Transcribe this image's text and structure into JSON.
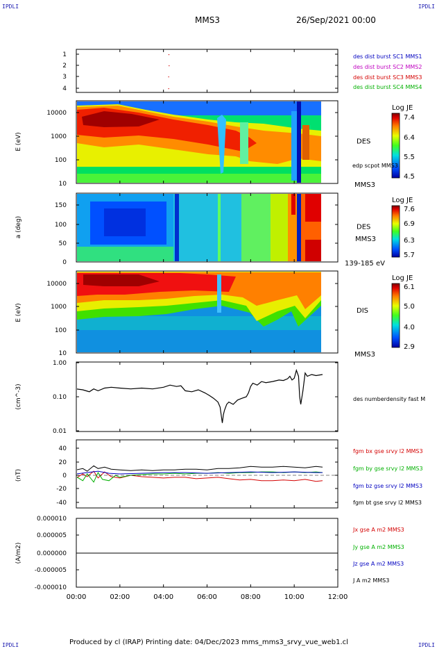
{
  "corner_label": "IPDLI",
  "header": {
    "spacecraft": "MMS3",
    "date": "26/Sep/2021 00:00"
  },
  "footer": {
    "text": "Produced by cl (IRAP)   Printing date: 04/Dec/2023   mms_mms3_srvy_vue_web1.cl"
  },
  "colors": {
    "red": "#d40000",
    "green": "#00b000",
    "blue": "#0000c0",
    "magenta": "#c000c0",
    "black": "#000000"
  },
  "chart_data": [
    {
      "type": "scatter",
      "id": "burst",
      "yticks": [
        "1",
        "2",
        "3",
        "4"
      ],
      "ylim": [
        0.7,
        4.3
      ],
      "legend": [
        {
          "text": "des dist burst SC1 MMS1",
          "color": "#0000c0"
        },
        {
          "text": "des dist burst SC2 MMS2",
          "color": "#c000c0"
        },
        {
          "text": "des dist burst SC3 MMS3",
          "color": "#d40000"
        },
        {
          "text": "des dist burst SC4 MMS4",
          "color": "#00b000"
        }
      ],
      "points": [
        {
          "x": 4.22,
          "y": 4
        },
        {
          "x": 4.22,
          "y": 3
        },
        {
          "x": 4.24,
          "y": 2
        },
        {
          "x": 4.23,
          "y": 1
        }
      ]
    },
    {
      "type": "heatmap",
      "id": "des_energy",
      "ylabel": "E (eV)",
      "yscale": "log",
      "ylim": [
        10,
        30000
      ],
      "yticks": [
        "10000",
        "1000",
        "100",
        "10"
      ],
      "labels": {
        "species": "DES",
        "sub": "edp scpot MMS3",
        "bottom": "MMS3"
      },
      "colorbar": {
        "title": "Log JE",
        "ticks": [
          "7.4",
          "6.4",
          "5.5",
          "4.5"
        ]
      }
    },
    {
      "type": "heatmap",
      "id": "des_pitch",
      "ylabel": "a (deg)",
      "ylim": [
        0,
        180
      ],
      "yticks": [
        "150",
        "100",
        "50",
        "0"
      ],
      "labels": {
        "species": "DES",
        "sub": "MMS3",
        "bottom": "139-185 eV"
      },
      "colorbar": {
        "title": "Log JE",
        "ticks": [
          "7.6",
          "6.9",
          "6.3",
          "5.7"
        ]
      }
    },
    {
      "type": "heatmap",
      "id": "dis_energy",
      "ylabel": "E (eV)",
      "yscale": "log",
      "ylim": [
        10,
        30000
      ],
      "yticks": [
        "10000",
        "1000",
        "100",
        "10"
      ],
      "labels": {
        "species": "DIS",
        "bottom": "MMS3"
      },
      "colorbar": {
        "title": "Log JE",
        "ticks": [
          "6.1",
          "5.0",
          "4.0",
          "2.9"
        ]
      }
    },
    {
      "type": "line",
      "id": "density",
      "ylabel": "(cm^-3)",
      "yscale": "log",
      "ylim": [
        0.01,
        1.0
      ],
      "yticks": [
        "1.00",
        "0.10",
        "0.01"
      ],
      "series": [
        {
          "name": "des numberdensity fast M",
          "color": "#000000",
          "x": [
            0,
            0.3,
            0.6,
            0.8,
            1.0,
            1.3,
            1.6,
            2.0,
            2.5,
            3.0,
            3.5,
            4.0,
            4.3,
            4.6,
            4.8,
            5.0,
            5.3,
            5.6,
            5.9,
            6.1,
            6.3,
            6.5,
            6.6,
            6.7,
            6.75,
            6.8,
            6.9,
            7.0,
            7.2,
            7.4,
            7.6,
            7.8,
            7.9,
            8.0,
            8.1,
            8.3,
            8.5,
            8.7,
            9.0,
            9.3,
            9.5,
            9.7,
            9.8,
            9.9,
            10.0,
            10.1,
            10.2,
            10.25,
            10.3,
            10.4,
            10.5,
            10.6,
            10.8,
            11.0,
            11.3
          ],
          "y": [
            0.17,
            0.16,
            0.14,
            0.17,
            0.15,
            0.18,
            0.19,
            0.18,
            0.17,
            0.18,
            0.17,
            0.19,
            0.22,
            0.2,
            0.21,
            0.15,
            0.14,
            0.16,
            0.13,
            0.11,
            0.09,
            0.07,
            0.05,
            0.017,
            0.03,
            0.04,
            0.06,
            0.07,
            0.06,
            0.08,
            0.09,
            0.1,
            0.13,
            0.2,
            0.25,
            0.22,
            0.28,
            0.26,
            0.28,
            0.31,
            0.3,
            0.34,
            0.4,
            0.31,
            0.35,
            0.6,
            0.4,
            0.1,
            0.06,
            0.15,
            0.5,
            0.4,
            0.45,
            0.42,
            0.45
          ]
        }
      ]
    },
    {
      "type": "line",
      "id": "fgm",
      "ylabel": "(nT)",
      "ylim": [
        -50,
        50
      ],
      "yticks": [
        "40",
        "20",
        "0",
        "-20",
        "-40"
      ],
      "series": [
        {
          "name": "fgm bx gse srvy l2 MMS3",
          "color": "#d40000",
          "x": [
            0,
            0.3,
            0.5,
            0.8,
            1.0,
            1.3,
            1.6,
            2.0,
            2.5,
            3.0,
            3.5,
            4.0,
            4.5,
            5.0,
            5.5,
            6.0,
            6.5,
            7.0,
            7.5,
            8.0,
            8.5,
            9.0,
            9.5,
            10.0,
            10.5,
            11.0,
            11.3
          ],
          "y": [
            -4,
            2,
            -2,
            6,
            -4,
            5,
            -2,
            -4,
            0,
            -2,
            -3,
            -4,
            -3,
            -3,
            -5,
            -4,
            -3,
            -5,
            -7,
            -6,
            -8,
            -8,
            -7,
            -8,
            -6,
            -9,
            -8
          ]
        },
        {
          "name": "fgm by gse srvy l2 MMS3",
          "color": "#00b000",
          "x": [
            0,
            0.3,
            0.5,
            0.8,
            1.0,
            1.2,
            1.5,
            1.8,
            2.0,
            2.5,
            3.0,
            3.5,
            4.0,
            4.5,
            5.0,
            5.5,
            6.0,
            6.5,
            7.0,
            7.5,
            8.0,
            8.5,
            9.0,
            9.5,
            10.0,
            10.5,
            11.0,
            11.3
          ],
          "y": [
            -2,
            -8,
            2,
            -10,
            4,
            -6,
            -8,
            0,
            -3,
            0,
            1,
            2,
            2,
            3,
            2,
            3,
            3,
            4,
            3,
            4,
            4,
            5,
            5,
            4,
            5,
            4,
            5,
            4
          ]
        },
        {
          "name": "fgm bz gse srvy l2 MMS3",
          "color": "#0000c0",
          "x": [
            0,
            0.5,
            1.0,
            1.5,
            2.0,
            3.0,
            4.0,
            5.0,
            6.0,
            7.0,
            8.0,
            9.0,
            10.0,
            11.0,
            11.3
          ],
          "y": [
            2,
            4,
            6,
            3,
            2,
            3,
            4,
            4,
            3,
            4,
            5,
            4,
            5,
            4,
            4
          ]
        },
        {
          "name": "fgm bt gse srvy l2 MMS3",
          "color": "#000000",
          "x": [
            0,
            0.3,
            0.5,
            0.8,
            1.0,
            1.3,
            1.6,
            2.0,
            2.5,
            3.0,
            3.5,
            4.0,
            4.5,
            5.0,
            5.5,
            6.0,
            6.5,
            7.0,
            7.5,
            8.0,
            8.5,
            9.0,
            9.5,
            10.0,
            10.5,
            11.0,
            11.3
          ],
          "y": [
            8,
            10,
            6,
            14,
            10,
            12,
            9,
            8,
            7,
            8,
            7,
            8,
            8,
            9,
            9,
            8,
            10,
            10,
            11,
            13,
            12,
            12,
            13,
            12,
            11,
            13,
            12
          ]
        }
      ]
    },
    {
      "type": "line",
      "id": "current",
      "ylabel": "(A/m2)",
      "ylim": [
        -1e-05,
        1e-05
      ],
      "yticks": [
        "0.000010",
        "0.000005",
        "0.000000",
        "-0.000005",
        "-0.000010"
      ],
      "series": [
        {
          "name": "Jx gse A m2 MMS3",
          "color": "#d40000",
          "x": [
            0,
            12
          ],
          "y": [
            0,
            0
          ]
        },
        {
          "name": "Jy gse A m2 MMS3",
          "color": "#00b000",
          "x": [
            0,
            12
          ],
          "y": [
            0,
            0
          ]
        },
        {
          "name": "Jz gse A m2 MMS3",
          "color": "#0000c0",
          "x": [
            0,
            12
          ],
          "y": [
            0,
            0
          ]
        },
        {
          "name": "J A m2 MMS3",
          "color": "#000000",
          "x": [
            0,
            12
          ],
          "y": [
            0,
            0
          ]
        }
      ]
    }
  ],
  "time_axis": {
    "xlim": [
      0,
      12
    ],
    "ticks": [
      "00:00",
      "02:00",
      "04:00",
      "06:00",
      "08:00",
      "10:00",
      "12:00"
    ]
  }
}
